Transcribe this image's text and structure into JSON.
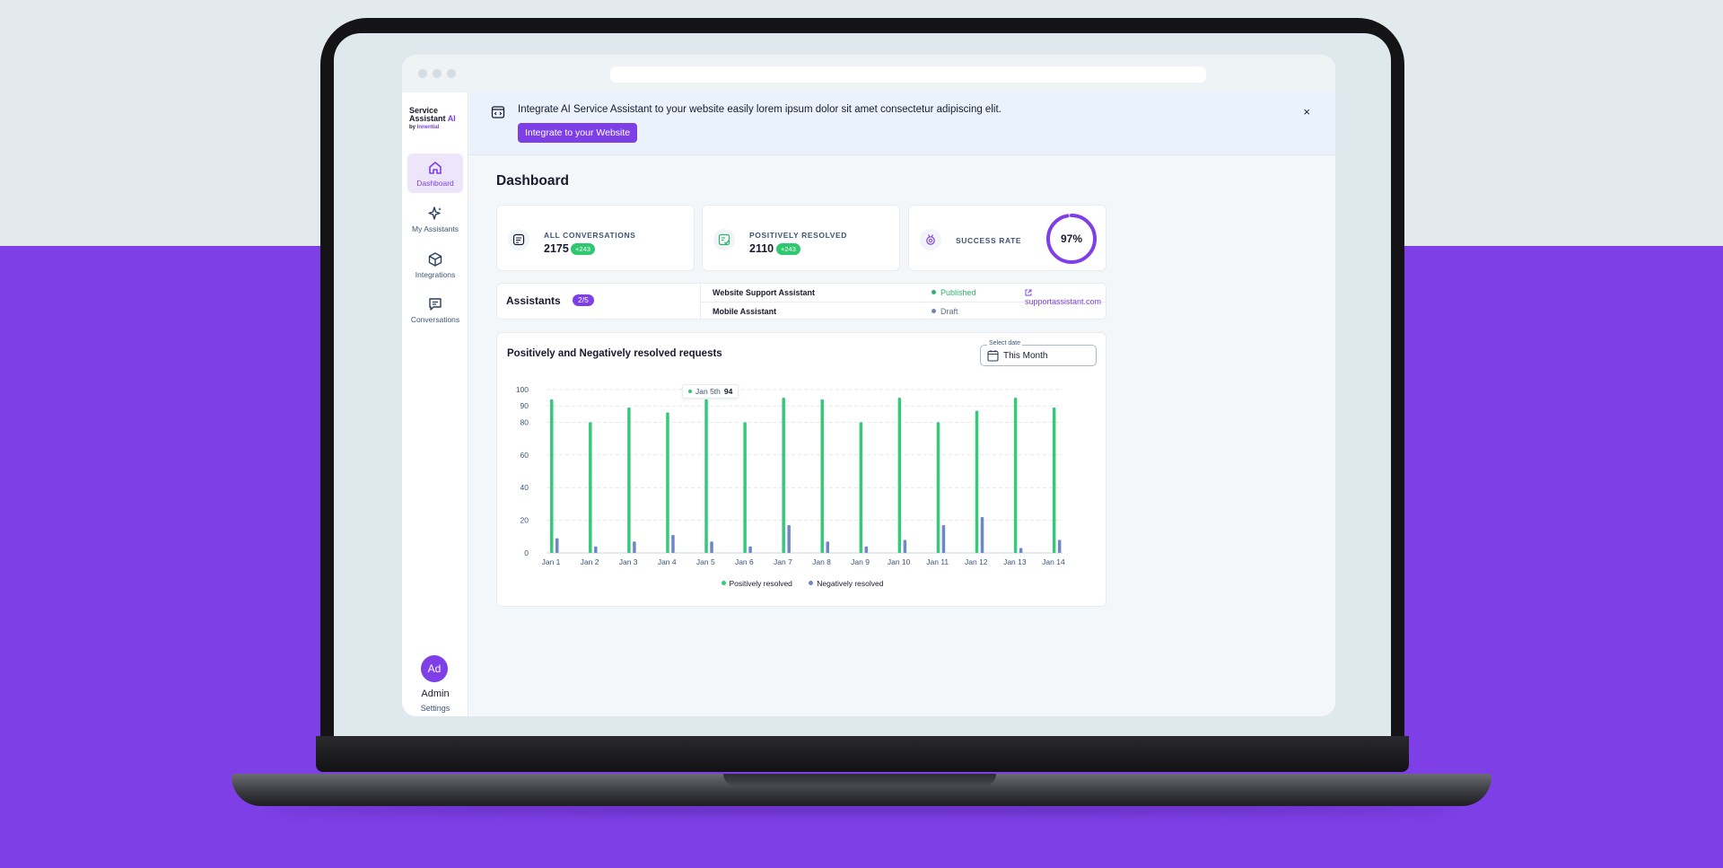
{
  "brand": {
    "line1": "Service",
    "line2": "Assistant",
    "ai": "AI",
    "by": "by",
    "company": "Innential"
  },
  "sidebar": {
    "items": [
      {
        "label": "Dashboard",
        "icon": "home-icon",
        "active": true
      },
      {
        "label": "My Assistants",
        "icon": "sparkles-icon",
        "active": false
      },
      {
        "label": "Integrations",
        "icon": "box-icon",
        "active": false
      },
      {
        "label": "Conversations",
        "icon": "chat-icon",
        "active": false
      }
    ],
    "avatar_initials": "Ad",
    "user_name": "Admin",
    "settings_label": "Settings"
  },
  "banner": {
    "text": "Integrate AI Service Assistant to your website easily lorem ipsum dolor sit amet consectetur adipiscing elit.",
    "button_label": "Integrate to your Website",
    "close_label": "×"
  },
  "page_title": "Dashboard",
  "stats": {
    "all_conversations": {
      "label": "ALL CONVERSATIONS",
      "value": "2175",
      "delta": "+243"
    },
    "positively_resolved": {
      "label": "POSITIVELY RESOLVED",
      "value": "2110",
      "delta": "+243"
    },
    "success_rate": {
      "label": "SUCCESS RATE",
      "value": "97%",
      "fraction": 0.97
    }
  },
  "assistants": {
    "title": "Assistants",
    "count": "2/5",
    "rows": [
      {
        "name": "Website Support Assistant",
        "status": "Published",
        "status_color": "#2fb36a",
        "link": "supportassistant.com"
      },
      {
        "name": "Mobile Assistant",
        "status": "Draft",
        "status_color": "#6f87a8",
        "link": ""
      }
    ]
  },
  "chart_card": {
    "title": "Positively and Negatively resolved requests",
    "date_label": "Select date",
    "date_value": "This Month",
    "tooltip_label": "Jan 5th",
    "tooltip_value": "94"
  },
  "chart_data": {
    "type": "bar",
    "categories": [
      "Jan 1",
      "Jan 2",
      "Jan 3",
      "Jan 4",
      "Jan 5",
      "Jan 6",
      "Jan 7",
      "Jan 8",
      "Jan 9",
      "Jan 10",
      "Jan 11",
      "Jan 12",
      "Jan 13",
      "Jan 14"
    ],
    "series": [
      {
        "name": "Positively resolved",
        "color": "#36c97a",
        "values": [
          94,
          80,
          89,
          86,
          94,
          80,
          95,
          94,
          80,
          95,
          80,
          87,
          95,
          89
        ]
      },
      {
        "name": "Negatively resolved",
        "color": "#6f87c8",
        "values": [
          9,
          4,
          7,
          11,
          7,
          4,
          17,
          7,
          4,
          8,
          17,
          22,
          3,
          8
        ]
      }
    ],
    "ylim": [
      0,
      100
    ],
    "yticks": [
      0,
      20,
      40,
      60,
      80,
      90,
      100
    ],
    "grid": true,
    "legend": "bottom"
  }
}
